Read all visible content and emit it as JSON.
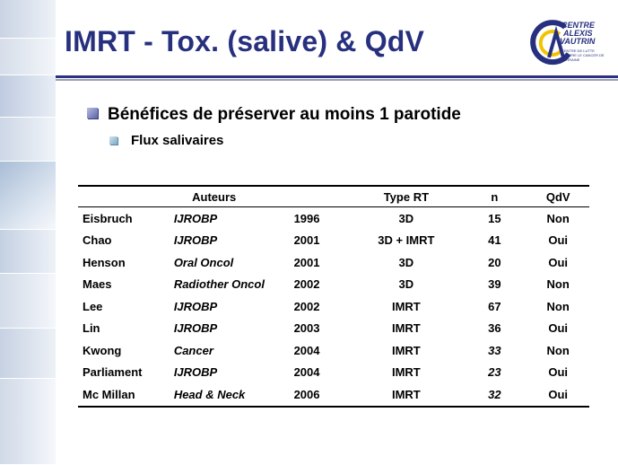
{
  "slide": {
    "title": "IMRT - Tox. (salive) & QdV",
    "bullet1": "Bénéfices de préserver au moins 1 parotide",
    "bullet2": "Flux salivaires"
  },
  "logo": {
    "lines": [
      "CENTRE",
      "ALEXIS",
      "VAUTRIN"
    ],
    "subtitle": "CENTRE DE LUTTE CONTRE LE CANCER DE LORRAINE"
  },
  "table": {
    "headers": {
      "authors": "Auteurs",
      "type": "Type RT",
      "n": "n",
      "qdv": "QdV"
    },
    "rows": [
      {
        "author": "Eisbruch",
        "journal": "IJROBP",
        "year": "1996",
        "type": "3D",
        "n": "15",
        "n_italic": false,
        "qdv": "Non"
      },
      {
        "author": "Chao",
        "journal": "IJROBP",
        "year": "2001",
        "type": "3D + IMRT",
        "n": "41",
        "n_italic": false,
        "qdv": "Oui"
      },
      {
        "author": "Henson",
        "journal": "Oral Oncol",
        "year": "2001",
        "type": "3D",
        "n": "20",
        "n_italic": false,
        "qdv": "Oui"
      },
      {
        "author": "Maes",
        "journal": "Radiother Oncol",
        "year": "2002",
        "type": "3D",
        "n": "39",
        "n_italic": false,
        "qdv": "Non"
      },
      {
        "author": "Lee",
        "journal": "IJROBP",
        "year": "2002",
        "type": "IMRT",
        "n": "67",
        "n_italic": false,
        "qdv": "Non"
      },
      {
        "author": "Lin",
        "journal": "IJROBP",
        "year": "2003",
        "type": "IMRT",
        "n": "36",
        "n_italic": false,
        "qdv": "Oui"
      },
      {
        "author": "Kwong",
        "journal": "Cancer",
        "year": "2004",
        "type": "IMRT",
        "n": "33",
        "n_italic": true,
        "qdv": "Non"
      },
      {
        "author": "Parliament",
        "journal": "IJROBP",
        "year": "2004",
        "type": "IMRT",
        "n": "23",
        "n_italic": true,
        "qdv": "Oui"
      },
      {
        "author": "Mc Millan",
        "journal": "Head & Neck",
        "year": "2006",
        "type": "IMRT",
        "n": "32",
        "n_italic": true,
        "qdv": "Oui"
      }
    ]
  },
  "colors": {
    "title": "#27307e",
    "rule": "#2a3482",
    "logo_blue": "#27307e",
    "logo_yellow": "#f2c400"
  }
}
